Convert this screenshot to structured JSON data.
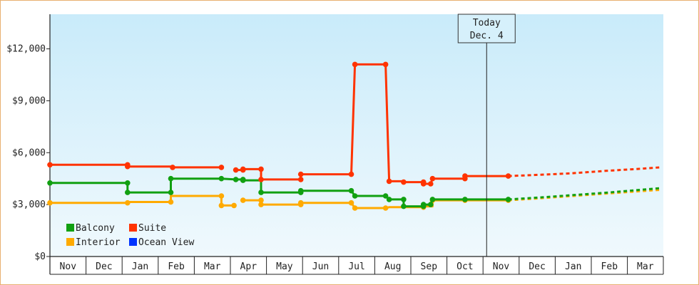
{
  "chart_data": {
    "type": "line",
    "y_ticks": [
      "$0",
      "$3,000",
      "$6,000",
      "$9,000",
      "$12,000"
    ],
    "ylim": [
      0,
      14000
    ],
    "x_labels": [
      "Nov",
      "Dec",
      "Jan",
      "Feb",
      "Mar",
      "Apr",
      "May",
      "Jun",
      "Jul",
      "Aug",
      "Sep",
      "Oct",
      "Nov",
      "Dec",
      "Jan",
      "Feb",
      "Mar"
    ],
    "today_marker": {
      "line1": "Today",
      "line2": "Dec. 4",
      "x_month": 12.1
    },
    "legend": [
      {
        "name": "Balcony",
        "color": "#11a011"
      },
      {
        "name": "Suite",
        "color": "#ff3300"
      },
      {
        "name": "Interior",
        "color": "#ffaa00"
      },
      {
        "name": "Ocean View",
        "color": "#0033ff"
      }
    ],
    "series": [
      {
        "name": "Suite",
        "color": "#ff3300",
        "points": [
          [
            0,
            5300
          ],
          [
            2.15,
            5300
          ],
          [
            2.15,
            5200
          ],
          [
            3.4,
            5200
          ],
          [
            3.4,
            5150
          ],
          [
            4.75,
            5150
          ]
        ],
        "segments": [
          [
            [
              0,
              5300
            ],
            [
              2.15,
              5300
            ],
            [
              2.15,
              5200
            ],
            [
              3.4,
              5200
            ],
            [
              3.4,
              5150
            ],
            [
              4.75,
              5150
            ]
          ],
          [
            [
              5.15,
              5000
            ],
            [
              5.35,
              5000
            ],
            [
              5.35,
              5050
            ],
            [
              5.85,
              5050
            ],
            [
              5.85,
              4450
            ],
            [
              6.95,
              4450
            ],
            [
              6.95,
              4750
            ],
            [
              8.35,
              4750
            ],
            [
              8.45,
              11100
            ],
            [
              9.3,
              11100
            ],
            [
              9.4,
              4350
            ],
            [
              9.8,
              4350
            ],
            [
              9.8,
              4300
            ],
            [
              10.35,
              4300
            ],
            [
              10.35,
              4200
            ],
            [
              10.55,
              4200
            ],
            [
              10.6,
              4500
            ],
            [
              11.5,
              4500
            ],
            [
              11.5,
              4650
            ],
            [
              12.7,
              4650
            ]
          ]
        ],
        "markers": [
          [
            0,
            5300
          ],
          [
            2.15,
            5300
          ],
          [
            2.15,
            5200
          ],
          [
            3.4,
            5150
          ],
          [
            4.75,
            5150
          ],
          [
            5.15,
            5000
          ],
          [
            5.35,
            5000
          ],
          [
            5.35,
            5050
          ],
          [
            5.85,
            5050
          ],
          [
            5.85,
            4450
          ],
          [
            6.95,
            4450
          ],
          [
            6.95,
            4750
          ],
          [
            8.35,
            4750
          ],
          [
            8.45,
            11100
          ],
          [
            9.3,
            11100
          ],
          [
            9.4,
            4350
          ],
          [
            9.8,
            4300
          ],
          [
            10.35,
            4300
          ],
          [
            10.35,
            4200
          ],
          [
            10.55,
            4200
          ],
          [
            10.6,
            4500
          ],
          [
            11.5,
            4500
          ],
          [
            11.5,
            4650
          ],
          [
            12.7,
            4650
          ]
        ],
        "projection": [
          [
            12.7,
            4650
          ],
          [
            13.3,
            4700
          ],
          [
            14.4,
            4800
          ],
          [
            15.4,
            4950
          ],
          [
            16.2,
            5050
          ],
          [
            16.9,
            5150
          ]
        ]
      },
      {
        "name": "Balcony",
        "color": "#11a011",
        "segments": [
          [
            [
              0,
              4250
            ],
            [
              2.15,
              4250
            ],
            [
              2.15,
              3700
            ],
            [
              3.35,
              3700
            ],
            [
              3.35,
              4500
            ],
            [
              4.75,
              4500
            ],
            [
              5.15,
              4450
            ],
            [
              5.35,
              4450
            ],
            [
              5.35,
              4400
            ],
            [
              5.85,
              4400
            ],
            [
              5.85,
              3700
            ],
            [
              6.95,
              3700
            ],
            [
              6.95,
              3800
            ],
            [
              8.35,
              3800
            ],
            [
              8.45,
              3500
            ],
            [
              9.3,
              3500
            ],
            [
              9.4,
              3300
            ],
            [
              9.8,
              3300
            ],
            [
              9.8,
              2900
            ],
            [
              10.35,
              2900
            ],
            [
              10.35,
              3000
            ],
            [
              10.55,
              3000
            ],
            [
              10.6,
              3300
            ],
            [
              11.5,
              3300
            ],
            [
              11.5,
              3300
            ],
            [
              12.7,
              3300
            ]
          ]
        ],
        "markers": [
          [
            0,
            4250
          ],
          [
            2.15,
            4250
          ],
          [
            2.15,
            3700
          ],
          [
            3.35,
            3700
          ],
          [
            3.35,
            4500
          ],
          [
            4.75,
            4500
          ],
          [
            5.15,
            4450
          ],
          [
            5.35,
            4450
          ],
          [
            5.35,
            4400
          ],
          [
            5.85,
            3700
          ],
          [
            6.95,
            3700
          ],
          [
            6.95,
            3800
          ],
          [
            8.35,
            3800
          ],
          [
            8.45,
            3500
          ],
          [
            9.3,
            3500
          ],
          [
            9.4,
            3300
          ],
          [
            9.8,
            3300
          ],
          [
            9.8,
            2900
          ],
          [
            10.35,
            2900
          ],
          [
            10.35,
            3000
          ],
          [
            10.55,
            3000
          ],
          [
            10.6,
            3300
          ],
          [
            11.5,
            3300
          ],
          [
            12.7,
            3300
          ]
        ],
        "projection": [
          [
            12.7,
            3300
          ],
          [
            13.5,
            3400
          ],
          [
            14.5,
            3550
          ],
          [
            15.5,
            3700
          ],
          [
            16.9,
            3950
          ]
        ]
      },
      {
        "name": "Interior",
        "color": "#ffaa00",
        "segments": [
          [
            [
              0,
              3100
            ],
            [
              2.15,
              3100
            ],
            [
              2.15,
              3150
            ],
            [
              3.35,
              3150
            ],
            [
              3.35,
              3500
            ],
            [
              4.75,
              3500
            ],
            [
              4.75,
              2950
            ],
            [
              5.1,
              2950
            ]
          ],
          [
            [
              5.35,
              3250
            ],
            [
              5.85,
              3250
            ],
            [
              5.85,
              3000
            ],
            [
              6.95,
              3000
            ],
            [
              6.95,
              3100
            ],
            [
              8.35,
              3100
            ],
            [
              8.45,
              2800
            ],
            [
              9.3,
              2800
            ],
            [
              9.4,
              2850
            ],
            [
              10.35,
              2850
            ],
            [
              10.35,
              2900
            ],
            [
              10.6,
              2900
            ],
            [
              10.6,
              3250
            ],
            [
              11.5,
              3250
            ],
            [
              11.5,
              3250
            ],
            [
              12.7,
              3250
            ]
          ]
        ],
        "markers": [
          [
            0,
            3100
          ],
          [
            2.15,
            3100
          ],
          [
            3.35,
            3150
          ],
          [
            4.75,
            3500
          ],
          [
            4.75,
            2950
          ],
          [
            5.1,
            2950
          ],
          [
            5.35,
            3250
          ],
          [
            5.85,
            3250
          ],
          [
            5.85,
            3000
          ],
          [
            6.95,
            3000
          ],
          [
            6.95,
            3100
          ],
          [
            8.35,
            3100
          ],
          [
            8.45,
            2800
          ],
          [
            9.3,
            2800
          ],
          [
            10.35,
            2850
          ],
          [
            10.6,
            3250
          ],
          [
            11.5,
            3250
          ],
          [
            12.7,
            3250
          ]
        ],
        "projection": [
          [
            12.7,
            3250
          ],
          [
            13.5,
            3350
          ],
          [
            14.5,
            3500
          ],
          [
            15.5,
            3650
          ],
          [
            16.9,
            3850
          ]
        ]
      }
    ]
  }
}
